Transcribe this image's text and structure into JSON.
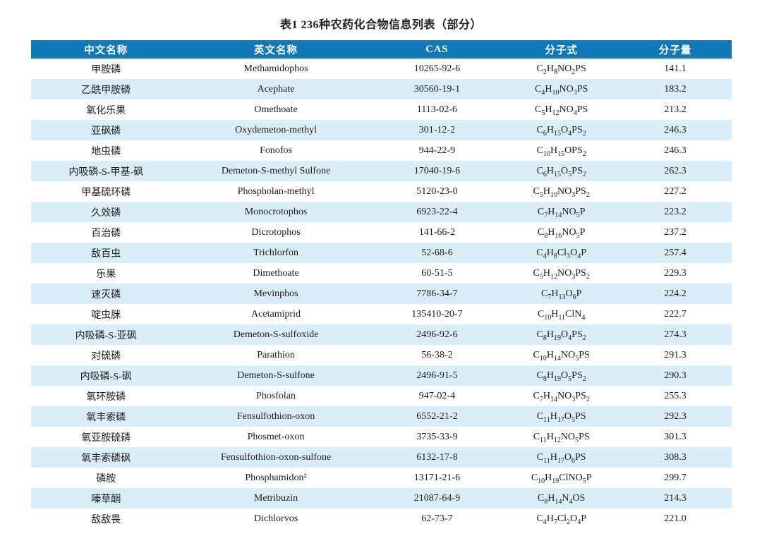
{
  "page": {
    "title": "表1 236种农药化合物信息列表（部分）"
  },
  "colors": {
    "header_bg": "#1178b7",
    "row_alt_bg": "#daeef9",
    "header_text": "#ffffff",
    "body_text": "#1d1d1f"
  },
  "table": {
    "columns": [
      "中文名称",
      "英文名称",
      "CAS",
      "分子式",
      "分子量"
    ],
    "rows": [
      {
        "cn": "甲胺磷",
        "en": "Methamidophos",
        "cas": "10265-92-6",
        "formula": "C2H8NO2PS",
        "mw": "141.1"
      },
      {
        "cn": "乙酰甲胺磷",
        "en": "Acephate",
        "cas": "30560-19-1",
        "formula": "C4H10NO3PS",
        "mw": "183.2"
      },
      {
        "cn": "氧化乐果",
        "en": "Omethoate",
        "cas": "1113-02-6",
        "formula": "C5H12NO4PS",
        "mw": "213.2"
      },
      {
        "cn": "亚砜磷",
        "en": "Oxydemeton-methyl",
        "cas": "301-12-2",
        "formula": "C6H15O4PS2",
        "mw": "246.3"
      },
      {
        "cn": "地虫磷",
        "en": "Fonofos",
        "cas": "944-22-9",
        "formula": "C10H15OPS2",
        "mw": "246.3"
      },
      {
        "cn": "内吸磷-S-甲基-砜",
        "en": "Demeton-S-methyl Sulfone",
        "cas": "17040-19-6",
        "formula": "C6H15O5PS2",
        "mw": "262.3"
      },
      {
        "cn": "甲基硫环磷",
        "en": "Phospholan-methyl",
        "cas": "5120-23-0",
        "formula": "C5H10NO3PS2",
        "mw": "227.2"
      },
      {
        "cn": "久效磷",
        "en": "Monocrotophos",
        "cas": "6923-22-4",
        "formula": "C7H14NO5P",
        "mw": "223.2"
      },
      {
        "cn": "百治磷",
        "en": "Dicrotophos",
        "cas": "141-66-2",
        "formula": "C8H16NO5P",
        "mw": "237.2"
      },
      {
        "cn": "敌百虫",
        "en": "Trichlorfon",
        "cas": "52-68-6",
        "formula": "C4H8Cl3O4P",
        "mw": "257.4"
      },
      {
        "cn": "乐果",
        "en": "Dimethoate",
        "cas": "60-51-5",
        "formula": "C5H12NO3PS2",
        "mw": "229.3"
      },
      {
        "cn": "速灭磷",
        "en": "Mevinphos",
        "cas": "7786-34-7",
        "formula": "C7H13O6P",
        "mw": "224.2"
      },
      {
        "cn": "啶虫脒",
        "en": "Acetamiprid",
        "cas": "135410-20-7",
        "formula": "C10H11ClN4",
        "mw": "222.7"
      },
      {
        "cn": "内吸磷-S-亚砜",
        "en": "Demeton-S-sulfoxide",
        "cas": "2496-92-6",
        "formula": "C8H19O4PS2",
        "mw": "274.3"
      },
      {
        "cn": "对硫磷",
        "en": "Parathion",
        "cas": "56-38-2",
        "formula": "C10H14NO5PS",
        "mw": "291.3"
      },
      {
        "cn": "内吸磷-S-砜",
        "en": "Demeton-S-sulfone",
        "cas": "2496-91-5",
        "formula": "C8H19O5PS2",
        "mw": "290.3"
      },
      {
        "cn": "氧环胺磷",
        "en": "Phosfolan",
        "cas": "947-02-4",
        "formula": "C7H14NO3PS2",
        "mw": "255.3"
      },
      {
        "cn": "氧丰索磷",
        "en": "Fensulfothion-oxon",
        "cas": "6552-21-2",
        "formula": "C11H17O5PS",
        "mw": "292.3"
      },
      {
        "cn": "氧亚胺硫磷",
        "en": "Phosmet-oxon",
        "cas": "3735-33-9",
        "formula": "C11H12NO5PS",
        "mw": "301.3"
      },
      {
        "cn": "氧丰索磷砜",
        "en": "Fensulfothion-oxon-sulfone",
        "cas": "6132-17-8",
        "formula": "C11H17O6PS",
        "mw": "308.3"
      },
      {
        "cn": "磷胺",
        "en": "Phosphamidon²",
        "cas": "13171-21-6",
        "formula": "C10H19ClNO5P",
        "mw": "299.7"
      },
      {
        "cn": "嗪草酮",
        "en": "Metribuzin",
        "cas": "21087-64-9",
        "formula": "C8H14N4OS",
        "mw": "214.3"
      },
      {
        "cn": "敌敌畏",
        "en": "Dichlorvos",
        "cas": "62-73-7",
        "formula": "C4H7Cl2O4P",
        "mw": "221.0"
      }
    ]
  }
}
